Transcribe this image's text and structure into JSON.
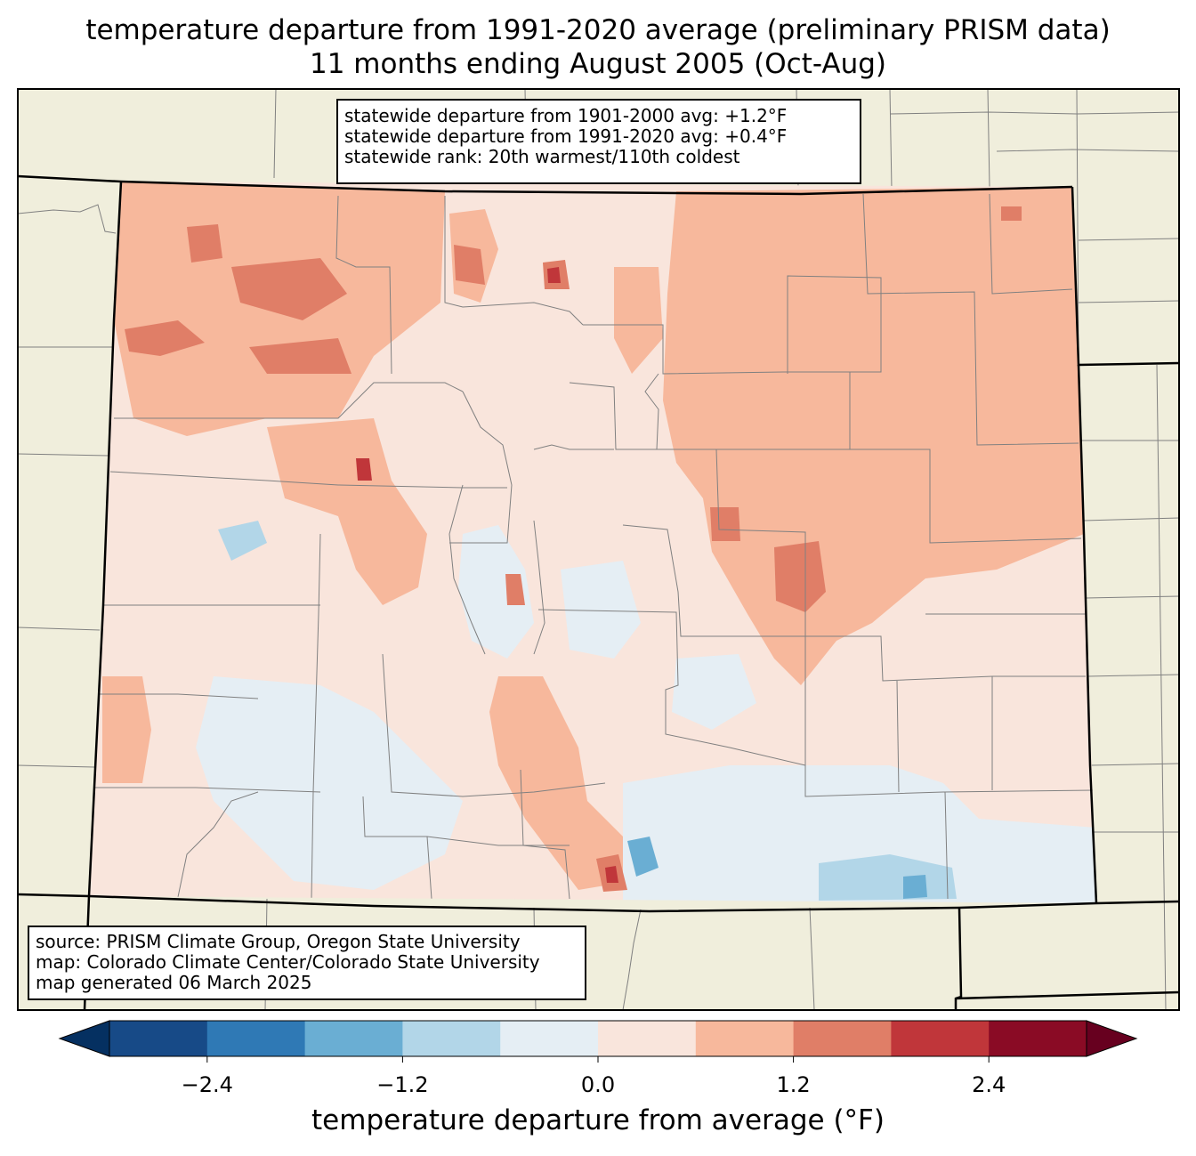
{
  "title": {
    "line1": "temperature departure from 1991-2020 average (preliminary PRISM data)",
    "line2": "11 months ending August 2005 (Oct-Aug)"
  },
  "stats": {
    "line1": "statewide departure from 1901-2000 avg: +1.2°F",
    "line2": "statewide departure from 1991-2020 avg: +0.4°F",
    "line3": "statewide rank: 20th warmest/110th coldest"
  },
  "source": {
    "line1": "source: PRISM Climate Group, Oregon State University",
    "line2": "map: Colorado Climate Center/Colorado State University",
    "line3": "map generated 06 March 2025"
  },
  "colorbar": {
    "label": "temperature departure from average (°F)",
    "min": -3.0,
    "max": 3.0,
    "step": 0.6,
    "ticks": [
      {
        "value": -2.4,
        "text": "−2.4"
      },
      {
        "value": -1.2,
        "text": "−1.2"
      },
      {
        "value": 0.0,
        "text": "0.0"
      },
      {
        "value": 1.2,
        "text": "1.2"
      },
      {
        "value": 2.4,
        "text": "2.4"
      }
    ],
    "colors": [
      "#174a87",
      "#2f79b5",
      "#6aaed3",
      "#b2d6e8",
      "#e5eef4",
      "#f9e5dc",
      "#f7b89c",
      "#e07e67",
      "#c0363a",
      "#8a0b25"
    ],
    "under_color": "#053061",
    "over_color": "#67001f"
  },
  "colors": {
    "land": "#f0eedc",
    "state_border": "#000000",
    "county_border": "#808080"
  }
}
